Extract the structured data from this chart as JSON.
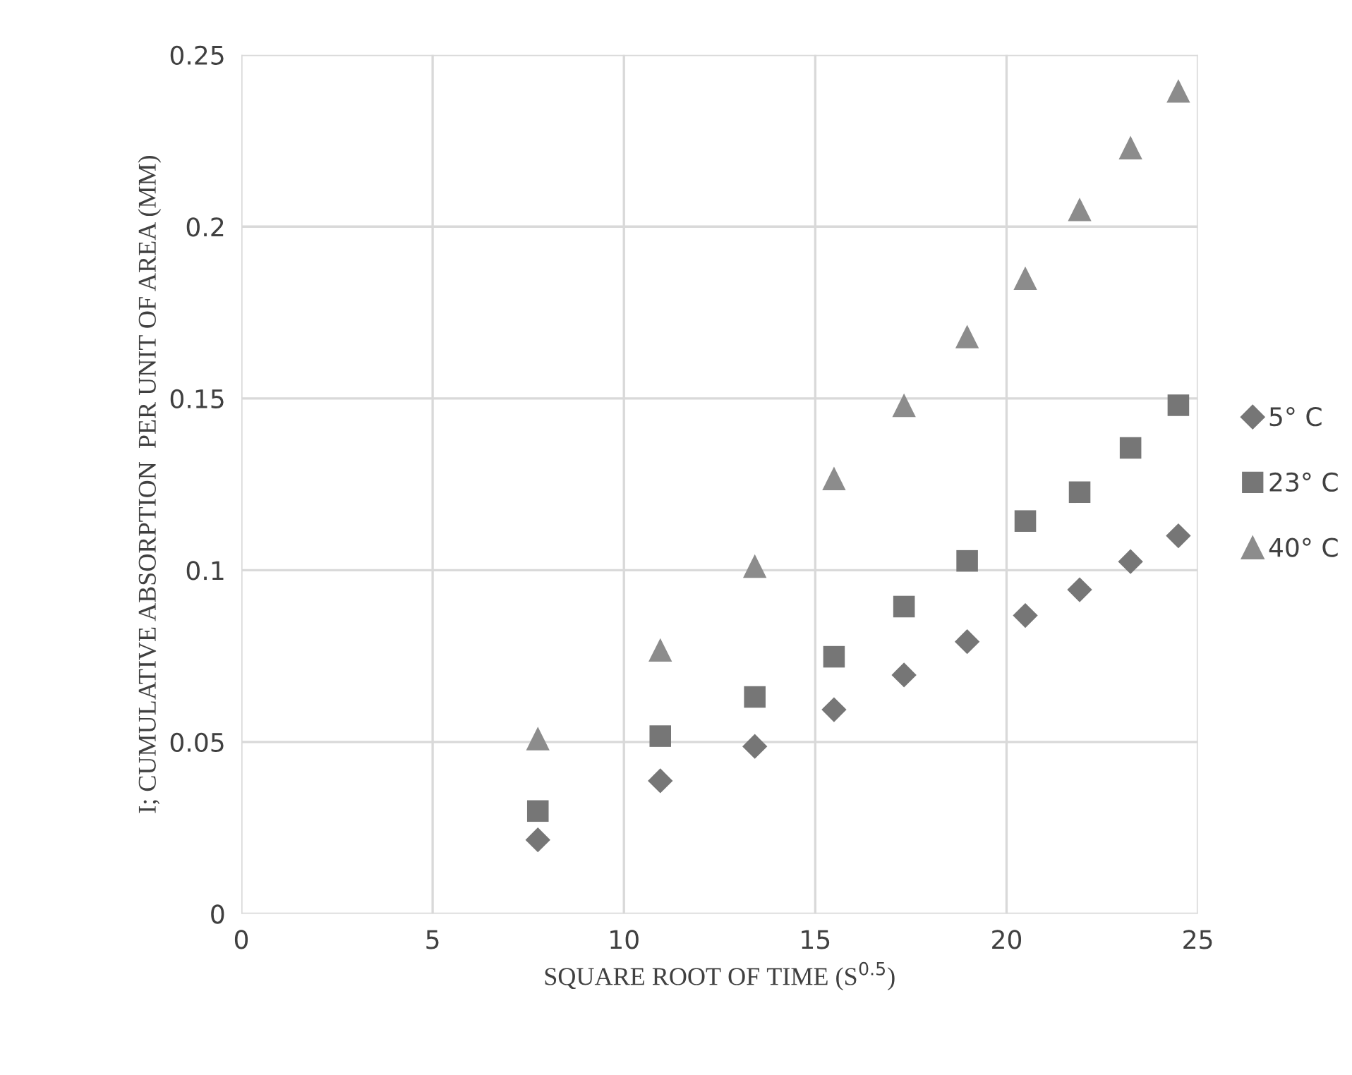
{
  "chart_data": {
    "type": "scatter",
    "xlabel": "SQUARE ROOT OF TIME (S$^{0.5}$)",
    "ylabel": "I; CUMULATIVE ABSORPTION  PER UNIT OF AREA (MM)",
    "x": [
      7.75,
      10.95,
      13.42,
      15.49,
      17.32,
      18.97,
      20.49,
      21.91,
      23.24,
      24.49
    ],
    "series": [
      {
        "name": "5° C",
        "color": "#767676",
        "marker": "diamond",
        "values": [
          0.0215,
          0.0387,
          0.0487,
          0.0594,
          0.0695,
          0.0792,
          0.0868,
          0.0943,
          0.1025,
          0.11
        ]
      },
      {
        "name": "23° C",
        "color": "#767676",
        "marker": "square",
        "values": [
          0.0299,
          0.0517,
          0.0631,
          0.0748,
          0.0894,
          0.1027,
          0.1143,
          0.1227,
          0.1356,
          0.148
        ]
      },
      {
        "name": "40° C",
        "color": "#8c8c8c",
        "marker": "triangle",
        "values": [
          0.051,
          0.0768,
          0.1012,
          0.1267,
          0.148,
          0.168,
          0.185,
          0.205,
          0.223,
          0.2395
        ]
      }
    ],
    "xlim": [
      0,
      25
    ],
    "xticks": [
      0,
      5,
      10,
      15,
      20,
      25
    ],
    "ylim": [
      0,
      0.25
    ],
    "yticks": [
      0,
      0.05,
      0.1,
      0.15,
      0.2,
      0.25
    ],
    "grid": true,
    "legend": "right"
  }
}
